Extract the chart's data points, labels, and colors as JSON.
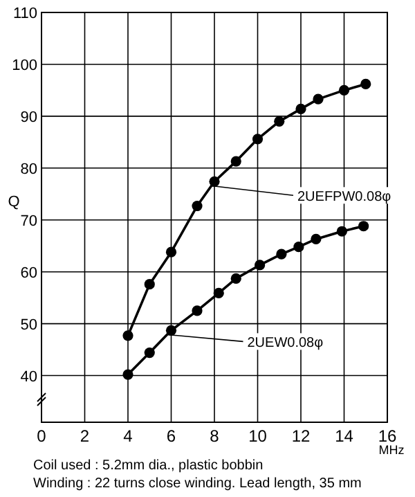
{
  "chart_data": {
    "type": "line",
    "xlabel": "MHz",
    "ylabel": "Q",
    "xlim": [
      0,
      16
    ],
    "xticks": [
      0,
      2,
      4,
      6,
      8,
      10,
      12,
      14,
      16
    ],
    "ylim": [
      31,
      110
    ],
    "yticks": [
      40,
      50,
      60,
      70,
      80,
      90,
      100,
      110
    ],
    "grid": true,
    "marker": "circle",
    "line_style": "solid",
    "series": [
      {
        "name": "2UEFPW0.08φ",
        "color": "#000000",
        "x": [
          4,
          5,
          6,
          7.2,
          8,
          9,
          10,
          11,
          12,
          12.8,
          14,
          15
        ],
        "values": [
          47.7,
          57.6,
          63.8,
          72.7,
          77.4,
          81.3,
          85.6,
          89,
          91.4,
          93.3,
          95,
          96.2
        ]
      },
      {
        "name": "2UEW0.08φ",
        "color": "#000000",
        "x": [
          4,
          5,
          6,
          7.2,
          8.2,
          9,
          10.1,
          11.1,
          11.9,
          12.7,
          13.9,
          14.9
        ],
        "values": [
          40.2,
          44.4,
          48.7,
          52.5,
          55.9,
          58.7,
          61.3,
          63.4,
          64.8,
          66.3,
          67.8,
          68.8
        ]
      }
    ],
    "annotations": [
      "Coil used : 5.2mm dia., plastic bobbin",
      "Winding : 22 turns close winding. Lead length, 35 mm"
    ]
  }
}
